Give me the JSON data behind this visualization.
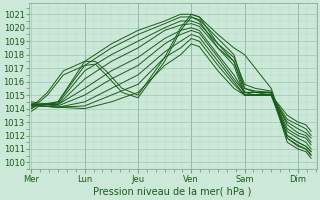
{
  "xlabel": "Pression niveau de la mer( hPa )",
  "bg_color": "#cce8d8",
  "grid_color_minor": "#b8d8c8",
  "grid_color_major": "#a0c8b0",
  "line_color": "#1a5c1a",
  "vline_color": "#7090a0",
  "ylim": [
    1009.5,
    1021.8
  ],
  "xlim": [
    -0.05,
    5.35
  ],
  "yticks": [
    1010,
    1011,
    1012,
    1013,
    1014,
    1015,
    1016,
    1017,
    1018,
    1019,
    1020,
    1021
  ],
  "day_labels": [
    "Mer",
    "Lun",
    "Jeu",
    "Ven",
    "Sam",
    "Dim"
  ],
  "day_positions": [
    0,
    1,
    2,
    3,
    4,
    5
  ],
  "lines": [
    {
      "x": [
        0.0,
        0.15,
        0.5,
        1.0,
        1.5,
        2.0,
        2.5,
        2.8,
        3.0,
        3.15,
        3.5,
        3.8,
        4.0,
        4.2,
        4.5,
        4.8,
        5.0,
        5.15,
        5.25
      ],
      "y": [
        1013.8,
        1014.2,
        1014.5,
        1017.5,
        1018.8,
        1019.8,
        1020.5,
        1021.0,
        1021.0,
        1020.8,
        1019.5,
        1018.5,
        1018.0,
        1017.0,
        1015.5,
        1012.0,
        1011.5,
        1011.2,
        1010.8
      ]
    },
    {
      "x": [
        0.0,
        0.15,
        0.5,
        1.0,
        1.5,
        2.0,
        2.5,
        2.8,
        3.0,
        3.15,
        3.5,
        3.8,
        4.0,
        4.2,
        4.5,
        4.8,
        5.0,
        5.15,
        5.25
      ],
      "y": [
        1014.0,
        1014.3,
        1014.5,
        1017.2,
        1018.5,
        1019.5,
        1020.3,
        1020.8,
        1020.8,
        1020.6,
        1019.2,
        1018.0,
        1015.5,
        1015.2,
        1015.0,
        1011.8,
        1011.3,
        1011.0,
        1010.6
      ]
    },
    {
      "x": [
        0.0,
        0.15,
        0.5,
        1.0,
        1.5,
        2.0,
        2.5,
        2.8,
        3.0,
        3.15,
        3.5,
        3.8,
        4.0,
        4.2,
        4.5,
        4.8,
        5.0,
        5.15,
        5.25
      ],
      "y": [
        1014.2,
        1014.3,
        1014.4,
        1016.8,
        1018.0,
        1019.0,
        1020.0,
        1020.5,
        1020.5,
        1020.3,
        1018.8,
        1017.5,
        1015.2,
        1015.0,
        1015.0,
        1012.0,
        1011.5,
        1011.2,
        1010.8
      ]
    },
    {
      "x": [
        0.0,
        0.15,
        0.5,
        1.0,
        1.5,
        2.0,
        2.5,
        2.8,
        3.0,
        3.15,
        3.5,
        3.8,
        4.0,
        4.2,
        4.5,
        4.8,
        5.0,
        5.15,
        5.25
      ],
      "y": [
        1014.3,
        1014.3,
        1014.3,
        1016.2,
        1017.5,
        1018.5,
        1019.8,
        1020.2,
        1020.3,
        1020.1,
        1018.5,
        1017.2,
        1015.0,
        1015.0,
        1015.1,
        1012.3,
        1011.8,
        1011.5,
        1011.0
      ]
    },
    {
      "x": [
        0.0,
        0.15,
        0.5,
        1.0,
        1.5,
        2.0,
        2.5,
        2.8,
        3.0,
        3.15,
        3.5,
        3.8,
        4.0,
        4.2,
        4.5,
        4.8,
        5.0,
        5.15,
        5.25
      ],
      "y": [
        1014.5,
        1014.4,
        1014.3,
        1015.5,
        1016.8,
        1017.8,
        1019.2,
        1019.8,
        1020.0,
        1019.8,
        1018.0,
        1016.5,
        1015.2,
        1015.2,
        1015.2,
        1012.5,
        1012.0,
        1011.8,
        1011.3
      ]
    },
    {
      "x": [
        0.0,
        0.15,
        0.5,
        1.0,
        1.5,
        2.0,
        2.5,
        2.8,
        3.0,
        3.15,
        3.5,
        3.8,
        4.0,
        4.2,
        4.5,
        4.8,
        5.0,
        5.15,
        5.25
      ],
      "y": [
        1014.4,
        1014.3,
        1014.2,
        1015.0,
        1016.2,
        1017.2,
        1018.8,
        1019.5,
        1019.8,
        1019.6,
        1017.8,
        1016.2,
        1015.2,
        1015.2,
        1015.2,
        1012.8,
        1012.2,
        1012.0,
        1011.5
      ]
    },
    {
      "x": [
        0.0,
        0.15,
        0.5,
        1.0,
        1.5,
        2.0,
        2.5,
        2.8,
        3.0,
        3.15,
        3.5,
        3.8,
        4.0,
        4.2,
        4.5,
        4.8,
        5.0,
        5.15,
        5.25
      ],
      "y": [
        1014.2,
        1014.2,
        1014.1,
        1014.5,
        1015.5,
        1016.5,
        1018.2,
        1019.0,
        1019.5,
        1019.3,
        1017.5,
        1016.0,
        1015.0,
        1015.0,
        1015.0,
        1013.0,
        1012.5,
        1012.2,
        1011.8
      ]
    },
    {
      "x": [
        0.0,
        0.15,
        0.5,
        1.0,
        1.5,
        2.0,
        2.5,
        2.8,
        3.0,
        3.15,
        3.5,
        3.8,
        4.0,
        4.2,
        4.5,
        4.8,
        5.0,
        5.15,
        5.25
      ],
      "y": [
        1014.3,
        1014.2,
        1014.1,
        1014.2,
        1015.0,
        1015.8,
        1017.8,
        1018.5,
        1019.2,
        1019.0,
        1017.2,
        1015.8,
        1015.0,
        1015.0,
        1015.0,
        1013.2,
        1012.8,
        1012.5,
        1012.0
      ]
    },
    {
      "x": [
        0.0,
        0.15,
        0.5,
        1.0,
        1.5,
        2.0,
        2.5,
        2.8,
        3.0,
        3.15,
        3.5,
        3.8,
        4.0,
        4.2,
        4.5,
        4.8,
        5.0,
        5.15,
        5.25
      ],
      "y": [
        1014.3,
        1014.2,
        1014.1,
        1014.0,
        1014.5,
        1015.2,
        1017.2,
        1018.0,
        1018.8,
        1018.6,
        1016.8,
        1015.5,
        1015.0,
        1015.0,
        1015.0,
        1013.5,
        1013.0,
        1012.8,
        1012.3
      ]
    },
    {
      "x": [
        0.0,
        0.3,
        0.6,
        1.0,
        1.2,
        1.4,
        1.7,
        2.0,
        2.5,
        2.8,
        3.0,
        3.15,
        3.5,
        3.8,
        4.0,
        4.2,
        4.5,
        4.8,
        5.0,
        5.15,
        5.25
      ],
      "y": [
        1014.0,
        1015.0,
        1016.5,
        1017.2,
        1017.3,
        1016.5,
        1015.2,
        1014.8,
        1017.5,
        1019.8,
        1020.8,
        1020.5,
        1018.5,
        1017.5,
        1015.5,
        1015.3,
        1015.2,
        1011.5,
        1011.0,
        1010.8,
        1010.3
      ]
    },
    {
      "x": [
        0.0,
        0.3,
        0.6,
        1.0,
        1.2,
        1.4,
        1.7,
        2.0,
        2.5,
        2.8,
        3.0,
        3.15,
        3.5,
        3.8,
        4.0,
        4.2,
        4.5,
        4.8,
        5.0,
        5.15,
        5.25
      ],
      "y": [
        1014.1,
        1015.2,
        1016.8,
        1017.5,
        1017.5,
        1016.8,
        1015.5,
        1015.0,
        1017.8,
        1020.0,
        1021.0,
        1020.8,
        1018.8,
        1017.8,
        1015.8,
        1015.5,
        1015.3,
        1011.8,
        1011.2,
        1011.0,
        1010.5
      ]
    }
  ]
}
